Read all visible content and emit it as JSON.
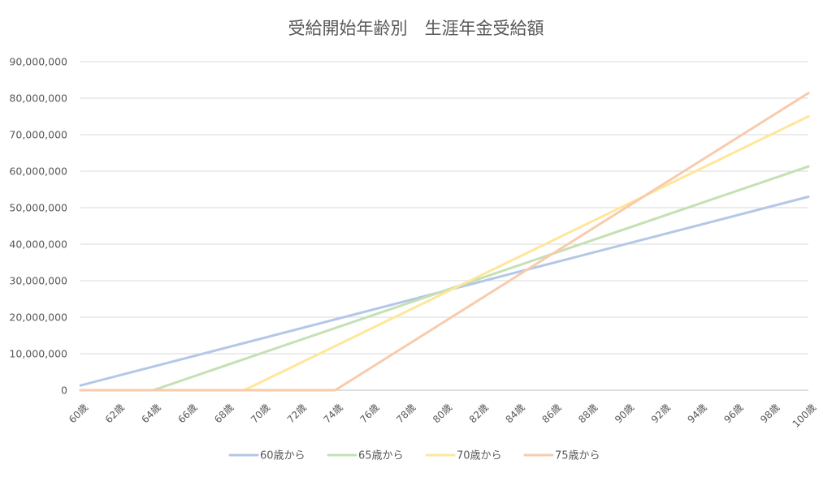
{
  "chart_data": {
    "type": "line",
    "title": "受給開始年齢別　生涯年金受給額",
    "xlabel": "",
    "ylabel": "",
    "x_ticks": [
      "60歳",
      "62歳",
      "64歳",
      "66歳",
      "68歳",
      "70歳",
      "72歳",
      "74歳",
      "76歳",
      "78歳",
      "80歳",
      "82歳",
      "84歳",
      "86歳",
      "88歳",
      "90歳",
      "92歳",
      "94歳",
      "96歳",
      "98歳",
      "100歳"
    ],
    "y_ticks": [
      "0",
      "10,000,000",
      "20,000,000",
      "30,000,000",
      "40,000,000",
      "50,000,000",
      "60,000,000",
      "70,000,000",
      "80,000,000",
      "90,000,000"
    ],
    "xlim": [
      60,
      100
    ],
    "ylim": [
      0,
      90000000
    ],
    "grid": true,
    "legend_position": "bottom",
    "series": [
      {
        "name": "60歳から",
        "color": "#b4c7e7",
        "points": [
          [
            60,
            1300000
          ],
          [
            100,
            53000000
          ]
        ]
      },
      {
        "name": "65歳から",
        "color": "#c5e0b4",
        "points": [
          [
            60,
            0
          ],
          [
            64,
            0
          ],
          [
            100,
            61300000
          ]
        ]
      },
      {
        "name": "70歳から",
        "color": "#ffe699",
        "points": [
          [
            60,
            0
          ],
          [
            69,
            0
          ],
          [
            100,
            75000000
          ]
        ]
      },
      {
        "name": "75歳から",
        "color": "#f8cbad",
        "points": [
          [
            60,
            0
          ],
          [
            74,
            0
          ],
          [
            100,
            81400000
          ]
        ]
      }
    ]
  }
}
